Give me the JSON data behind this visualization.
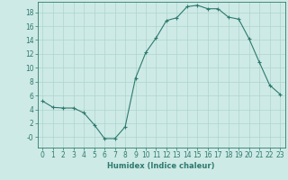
{
  "x": [
    0,
    1,
    2,
    3,
    4,
    5,
    6,
    7,
    8,
    9,
    10,
    11,
    12,
    13,
    14,
    15,
    16,
    17,
    18,
    19,
    20,
    21,
    22,
    23
  ],
  "y": [
    5.2,
    4.3,
    4.2,
    4.2,
    3.5,
    1.8,
    -0.2,
    -0.2,
    1.5,
    8.5,
    12.2,
    14.3,
    16.8,
    17.2,
    18.8,
    19.0,
    18.5,
    18.5,
    17.3,
    17.0,
    14.2,
    10.8,
    7.5,
    6.2
  ],
  "line_color": "#2d7a6e",
  "marker": "+",
  "marker_size": 3,
  "bg_color": "#ceeae6",
  "grid_color": "#aed4cf",
  "xlabel": "Humidex (Indice chaleur)",
  "ylim": [
    -1.5,
    19.5
  ],
  "xlim": [
    -0.5,
    23.5
  ],
  "yticks": [
    0,
    2,
    4,
    6,
    8,
    10,
    12,
    14,
    16,
    18
  ],
  "xticks": [
    0,
    1,
    2,
    3,
    4,
    5,
    6,
    7,
    8,
    9,
    10,
    11,
    12,
    13,
    14,
    15,
    16,
    17,
    18,
    19,
    20,
    21,
    22,
    23
  ],
  "xtick_labels": [
    "0",
    "1",
    "2",
    "3",
    "4",
    "5",
    "6",
    "7",
    "8",
    "9",
    "10",
    "11",
    "12",
    "13",
    "14",
    "15",
    "16",
    "17",
    "18",
    "19",
    "20",
    "21",
    "22",
    "23"
  ],
  "ytick_labels": [
    "-0",
    "2",
    "4",
    "6",
    "8",
    "10",
    "12",
    "14",
    "16",
    "18"
  ],
  "font_color": "#2d7a6e",
  "xlabel_fontsize": 6.0,
  "tick_fontsize": 5.5
}
